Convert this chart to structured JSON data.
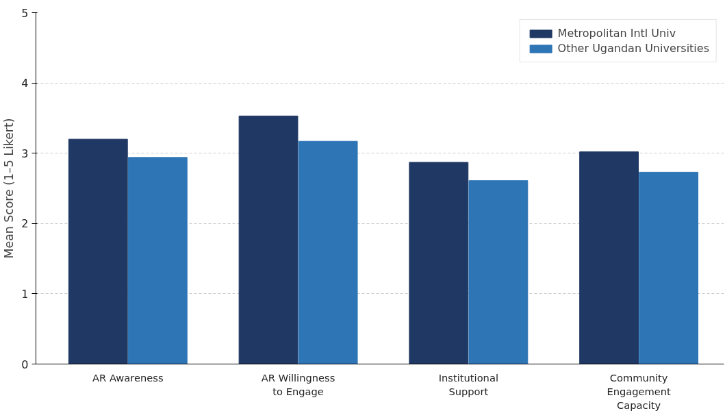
{
  "chart_data": {
    "type": "bar",
    "ylabel": "Mean Score (1–5 Likert)",
    "categories": [
      "AR Awareness",
      "AR Willingness\nto Engage",
      "Institutional\nSupport",
      "Community\nEngagement\nCapacity"
    ],
    "series": [
      {
        "name": "Metropolitan Intl Univ",
        "color": "#203864",
        "values": [
          3.2,
          3.53,
          2.87,
          3.02
        ]
      },
      {
        "name": "Other Ugandan Universities",
        "color": "#2e75b6",
        "values": [
          2.94,
          3.17,
          2.61,
          2.73
        ]
      }
    ],
    "ylim": [
      0,
      5
    ],
    "yticks": [
      0,
      1,
      2,
      3,
      4,
      5
    ],
    "grid": "y",
    "legend": "top right"
  }
}
